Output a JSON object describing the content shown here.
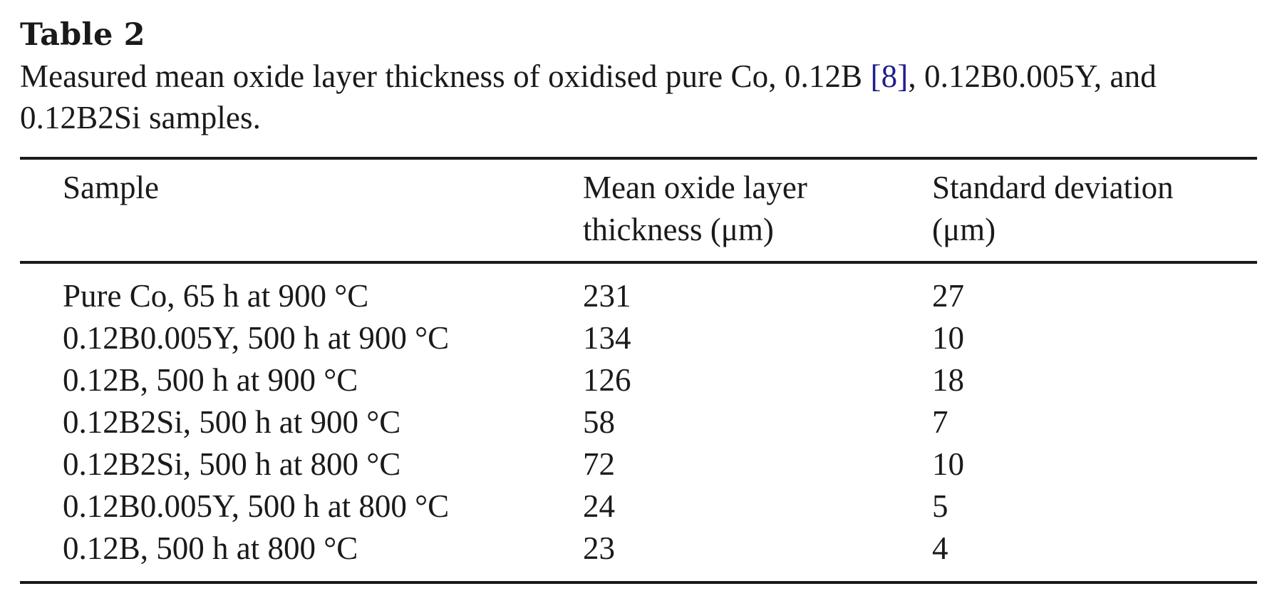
{
  "table": {
    "label": "Table 2",
    "caption_prefix": "Measured mean oxide layer thickness of oxidised pure Co, 0.12B ",
    "caption_ref": "[8]",
    "caption_suffix": ", 0.12B0.005Y, and",
    "caption_line2": "0.12B2Si samples.",
    "headers": {
      "sample": "Sample",
      "mean_line1": "Mean oxide layer",
      "mean_line2": "thickness (μm)",
      "std_line1": "Standard deviation",
      "std_line2": "(μm)"
    },
    "rows": [
      {
        "sample": "Pure Co, 65 h at 900 °C",
        "mean": "231",
        "std": "27"
      },
      {
        "sample": "0.12B0.005Y, 500 h at 900 °C",
        "mean": "134",
        "std": "10"
      },
      {
        "sample": "0.12B, 500 h at 900 °C",
        "mean": "126",
        "std": "18"
      },
      {
        "sample": "0.12B2Si, 500 h at 900 °C",
        "mean": "58",
        "std": "7"
      },
      {
        "sample": "0.12B2Si, 500 h at 800 °C",
        "mean": "72",
        "std": "10"
      },
      {
        "sample": "0.12B0.005Y, 500 h at 800 °C",
        "mean": "24",
        "std": "5"
      },
      {
        "sample": "0.12B, 500 h at 800 °C",
        "mean": "23",
        "std": "4"
      }
    ]
  }
}
